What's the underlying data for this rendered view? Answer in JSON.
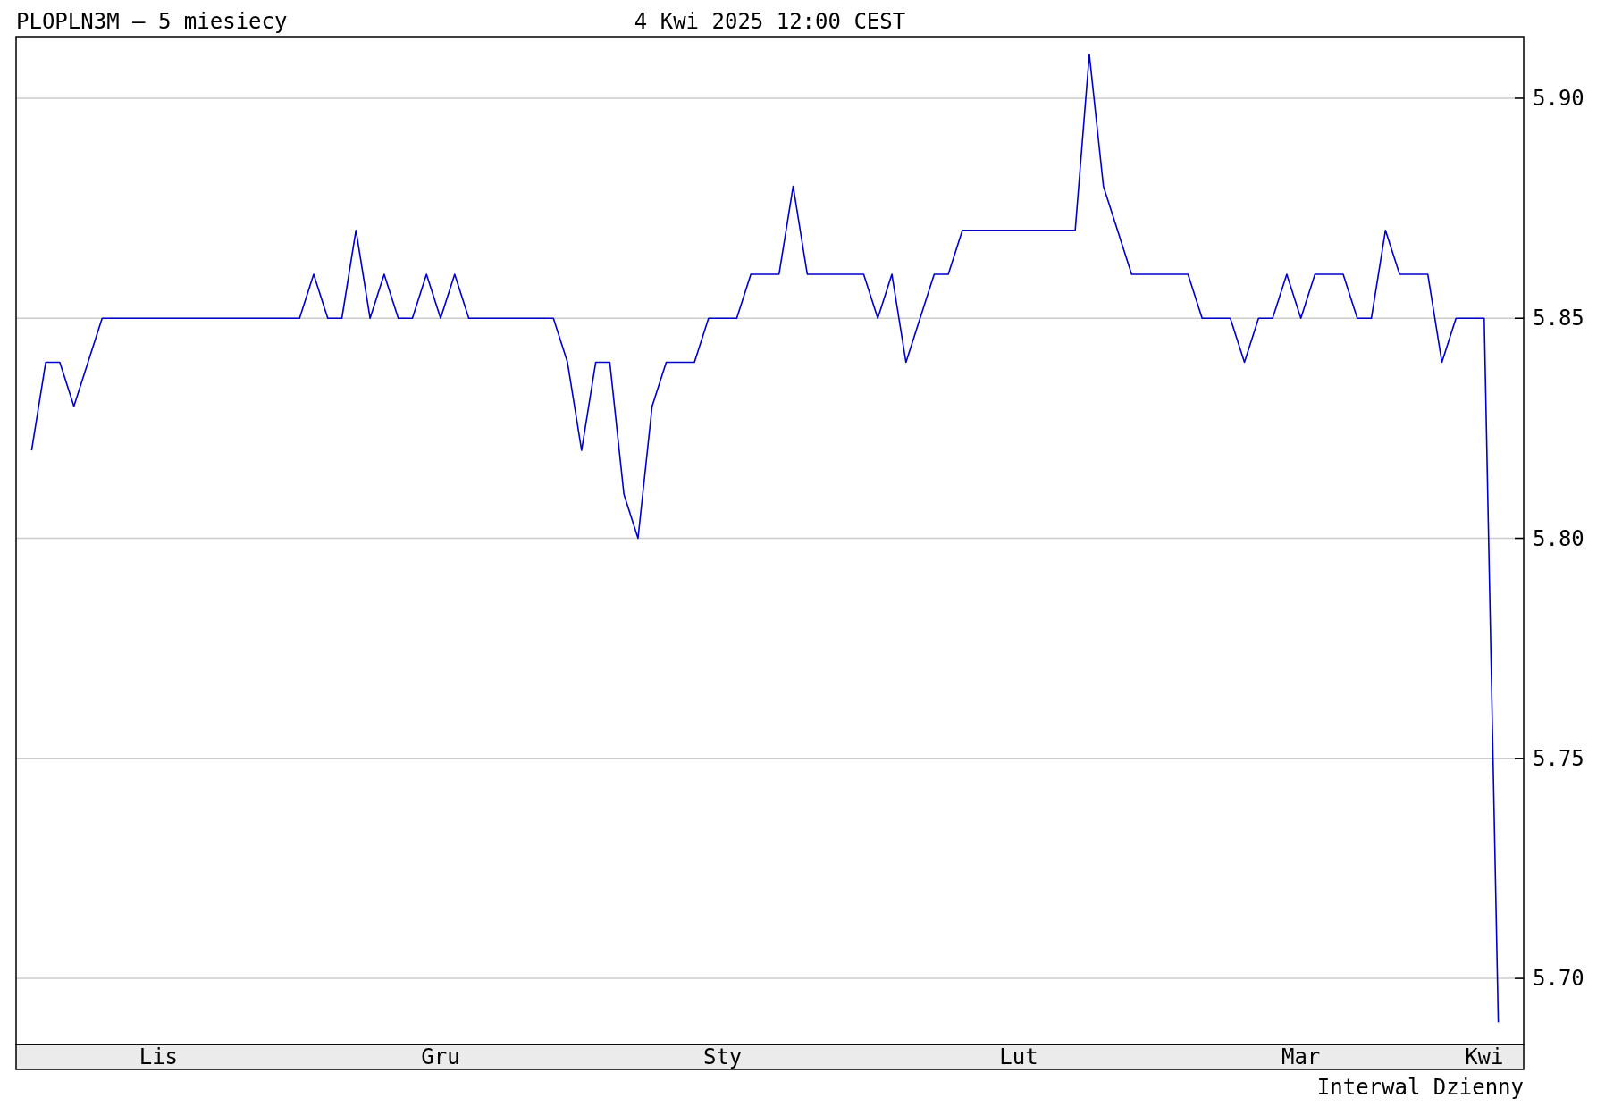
{
  "chart_data": {
    "type": "line",
    "title": "PLOPLN3M – 5 miesiecy",
    "subtitle": "4 Kwi 2025 12:00 CEST",
    "annotations": [
      "Interwal Dzienny"
    ],
    "categories": [
      null,
      null,
      null,
      null,
      null,
      null,
      null,
      null,
      null,
      "Lis",
      null,
      null,
      null,
      null,
      null,
      null,
      null,
      null,
      null,
      null,
      null,
      null,
      null,
      null,
      null,
      null,
      null,
      null,
      null,
      "Gru",
      null,
      null,
      null,
      null,
      null,
      null,
      null,
      null,
      null,
      null,
      null,
      null,
      null,
      null,
      null,
      null,
      null,
      null,
      null,
      "Sty",
      null,
      null,
      null,
      null,
      null,
      null,
      null,
      null,
      null,
      null,
      null,
      null,
      null,
      null,
      null,
      null,
      null,
      null,
      null,
      null,
      "Lut",
      null,
      null,
      null,
      null,
      null,
      null,
      null,
      null,
      null,
      null,
      null,
      null,
      null,
      null,
      null,
      null,
      null,
      null,
      null,
      "Mar",
      null,
      null,
      null,
      null,
      null,
      null,
      null,
      null,
      null,
      null,
      null,
      null,
      "Kwi",
      null
    ],
    "series": [
      {
        "color": "#0000cc",
        "values": [
          5.82,
          5.84,
          5.84,
          5.83,
          5.84,
          5.85,
          5.85,
          5.85,
          5.85,
          5.85,
          5.85,
          5.85,
          5.85,
          5.85,
          5.85,
          5.85,
          5.85,
          5.85,
          5.85,
          5.85,
          5.86,
          5.85,
          5.85,
          5.87,
          5.85,
          5.86,
          5.85,
          5.85,
          5.86,
          5.85,
          5.86,
          5.85,
          5.85,
          5.85,
          5.85,
          5.85,
          5.85,
          5.85,
          5.84,
          5.82,
          5.84,
          5.84,
          5.81,
          5.8,
          5.83,
          5.84,
          5.84,
          5.84,
          5.85,
          5.85,
          5.85,
          5.86,
          5.86,
          5.86,
          5.88,
          5.86,
          5.86,
          5.86,
          5.86,
          5.86,
          5.85,
          5.86,
          5.84,
          5.85,
          5.86,
          5.86,
          5.87,
          5.87,
          5.87,
          5.87,
          5.87,
          5.87,
          5.87,
          5.87,
          5.87,
          5.91,
          5.88,
          5.87,
          5.86,
          5.86,
          5.86,
          5.86,
          5.86,
          5.85,
          5.85,
          5.85,
          5.84,
          5.85,
          5.85,
          5.86,
          5.85,
          5.86,
          5.86,
          5.86,
          5.85,
          5.85,
          5.87,
          5.86,
          5.86,
          5.86,
          5.84,
          5.85,
          5.85,
          5.85,
          5.69
        ]
      }
    ],
    "ylim": [
      5.685,
      5.914
    ],
    "yticks": [
      {
        "value": 5.7,
        "label": "5.70"
      },
      {
        "value": 5.75,
        "label": "5.75"
      },
      {
        "value": 5.8,
        "label": "5.80"
      },
      {
        "value": 5.85,
        "label": "5.85"
      },
      {
        "value": 5.9,
        "label": "5.90"
      }
    ],
    "grid": "y",
    "line_style": "solid",
    "marker": "none"
  }
}
